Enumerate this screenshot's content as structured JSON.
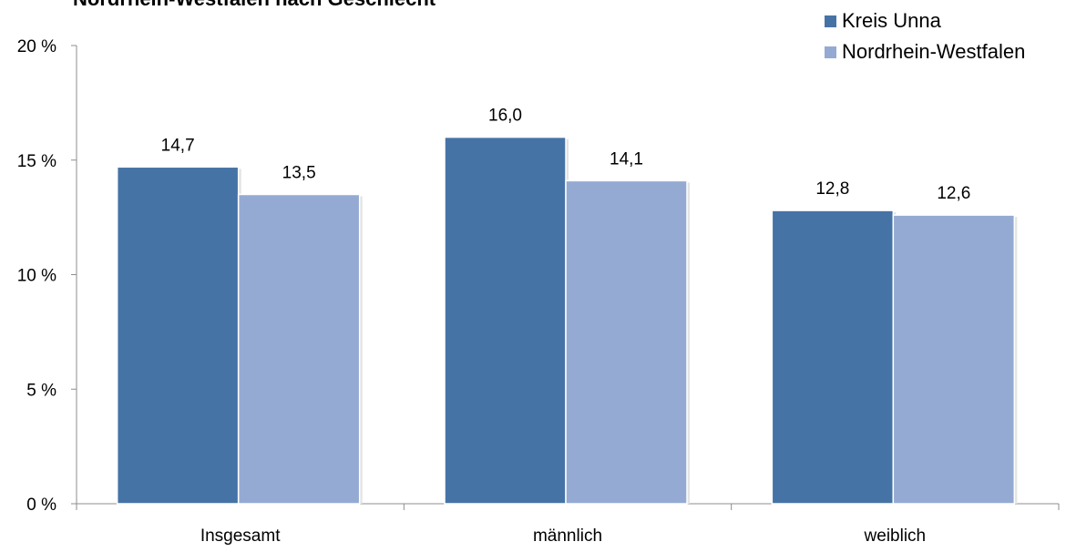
{
  "chart_data": {
    "type": "bar",
    "title": "Nordrhein-Westfalen nach Geschlecht",
    "categories": [
      "Insgesamt",
      "männlich",
      "weiblich"
    ],
    "series": [
      {
        "name": "Kreis Unna",
        "values": [
          14.7,
          16.0,
          12.8
        ],
        "labels": [
          "14,7",
          "16,0",
          "12,8"
        ]
      },
      {
        "name": "Nordrhein-Westfalen",
        "values": [
          13.5,
          14.1,
          12.6
        ],
        "labels": [
          "13,5",
          "14,1",
          "12,6"
        ]
      }
    ],
    "ylim": [
      0,
      20
    ],
    "yticks": [
      0,
      5,
      10,
      15,
      20
    ],
    "ytick_labels": [
      "0 %",
      "5 %",
      "10 %",
      "15 %",
      "20 %"
    ],
    "xlabel": "",
    "ylabel": "",
    "grid": false,
    "legend_position": "top-right",
    "colors": [
      "#4673a6",
      "#95aad3"
    ]
  }
}
